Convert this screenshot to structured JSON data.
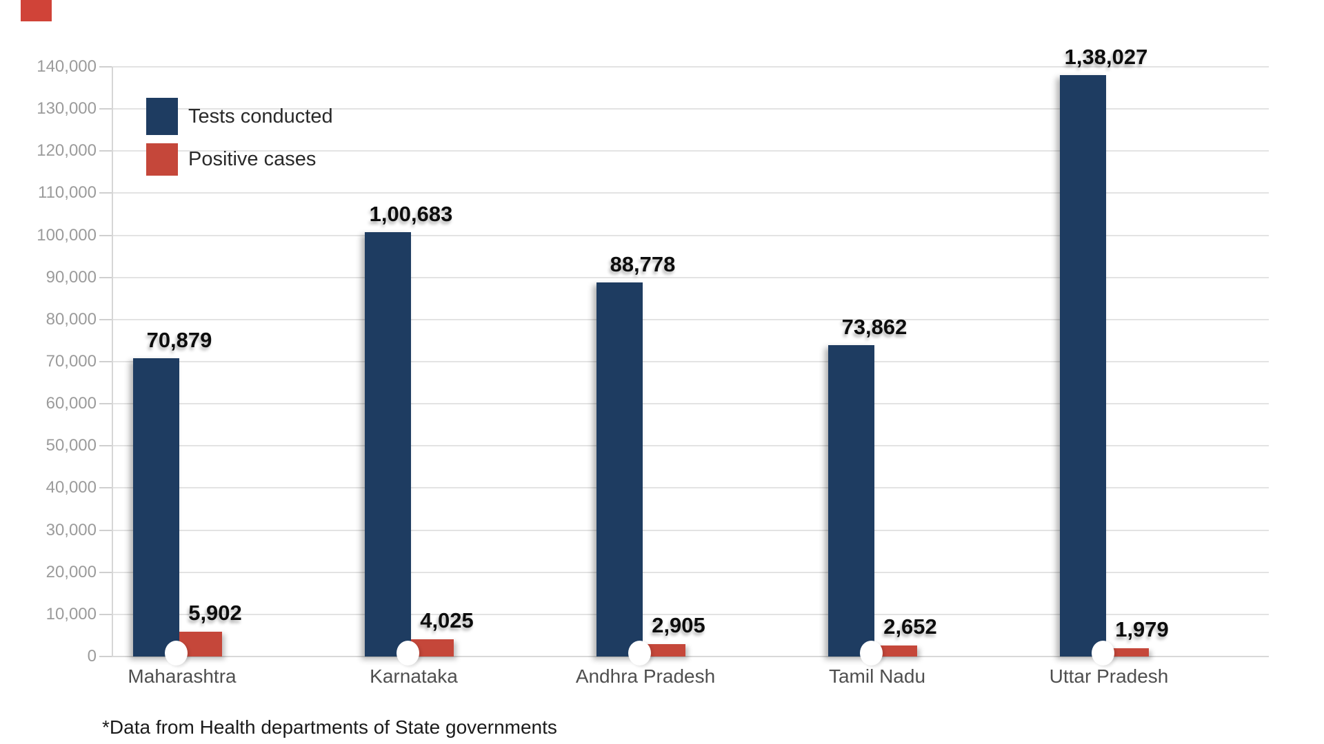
{
  "accent_mark": {
    "color": "#d04338"
  },
  "legend": {
    "items": [
      {
        "label": "Tests conducted",
        "color": "#1e3c61"
      },
      {
        "label": "Positive cases",
        "color": "#c5473a"
      }
    ]
  },
  "footnote": "*Data from Health departments of State governments",
  "chart_data": {
    "type": "bar",
    "title": "",
    "xlabel": "",
    "ylabel": "",
    "categories": [
      "Maharashtra",
      "Karnataka",
      "Andhra Pradesh",
      "Tamil Nadu",
      "Uttar Pradesh"
    ],
    "series": [
      {
        "name": "Tests conducted",
        "color": "#1e3c61",
        "values": [
          70879,
          100683,
          88778,
          73862,
          138027
        ],
        "value_labels": [
          "70,879",
          "1,00,683",
          "88,778",
          "73,862",
          "1,38,027"
        ]
      },
      {
        "name": "Positive cases",
        "color": "#c5473a",
        "values": [
          5902,
          4025,
          2905,
          2652,
          1979
        ],
        "value_labels": [
          "5,902",
          "4,025",
          "2,905",
          "2,652",
          "1,979"
        ]
      }
    ],
    "ylim": [
      0,
      140000
    ],
    "ytick_step": 10000,
    "ytick_labels": [
      "0",
      "10,000",
      "20,000",
      "30,000",
      "40,000",
      "50,000",
      "60,000",
      "70,000",
      "80,000",
      "90,000",
      "100,000",
      "110,000",
      "120,000",
      "130,000",
      "140,000"
    ],
    "grid": true,
    "legend_position": "top-left",
    "number_format": "indian",
    "marker": "white dot at base of each bar pair"
  }
}
